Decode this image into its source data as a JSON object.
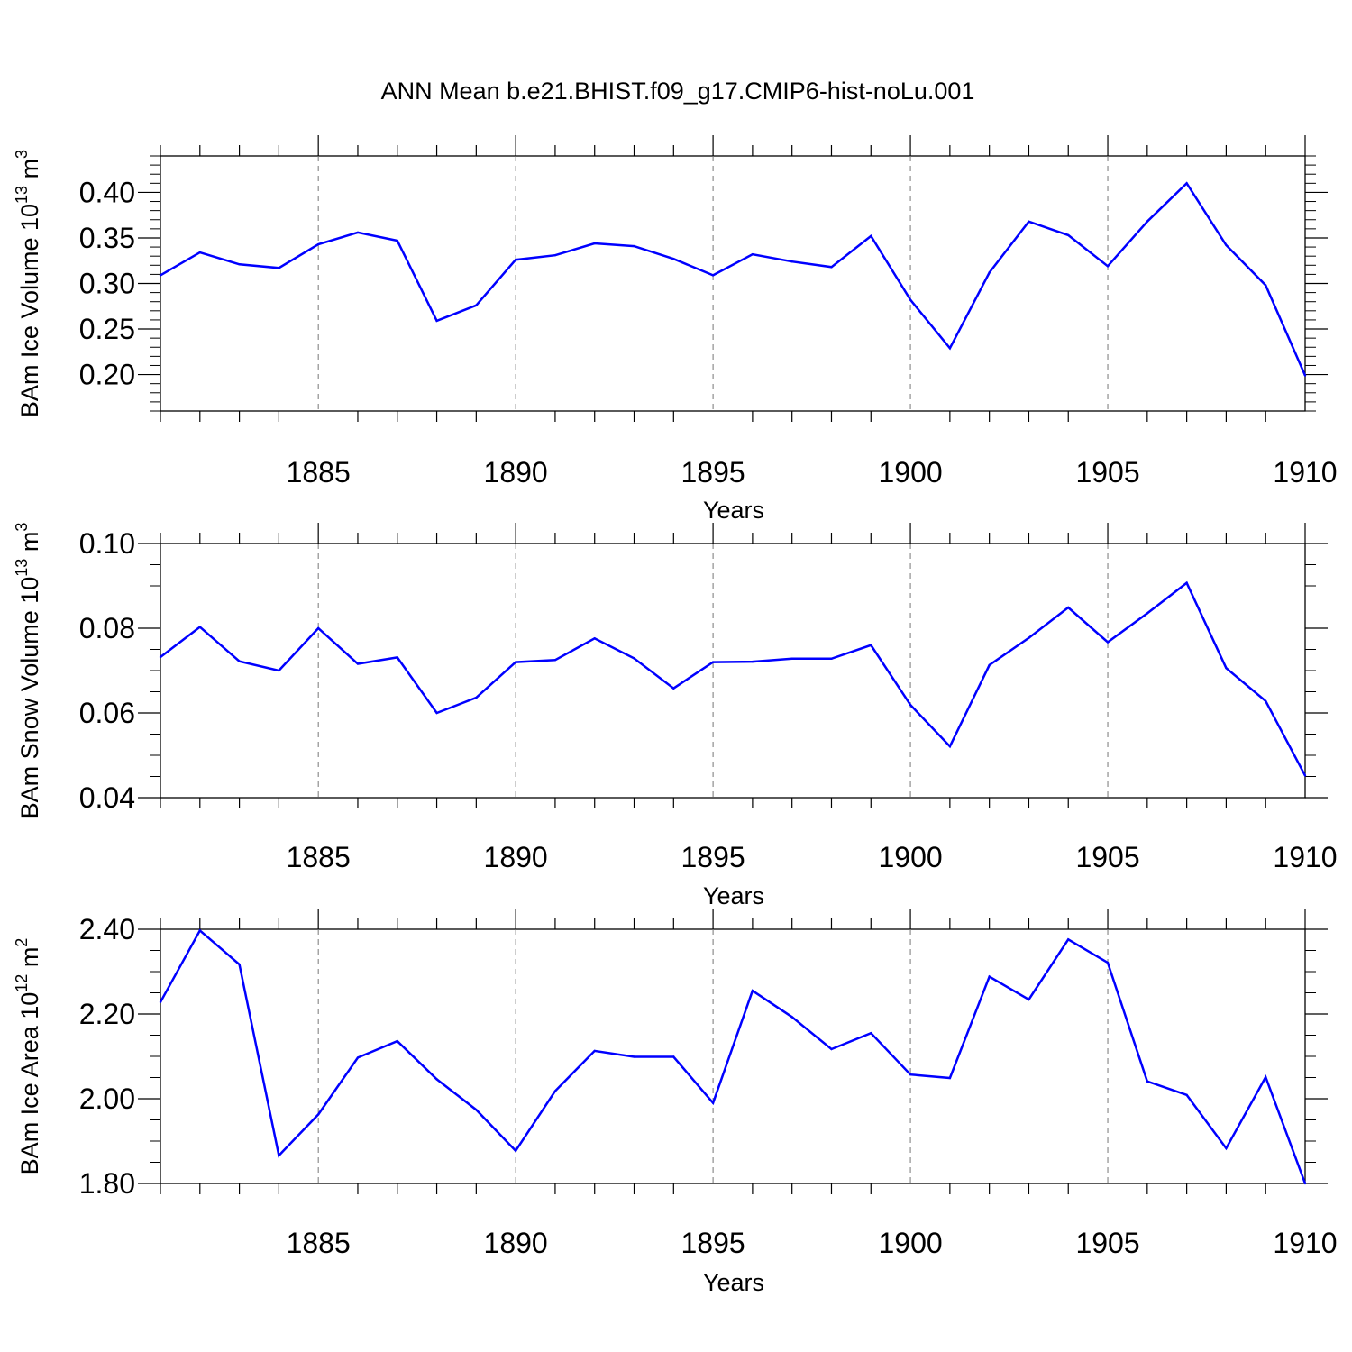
{
  "figure": {
    "title": "ANN Mean b.e21.BHIST.f09_g17.CMIP6-hist-noLu.001",
    "line_color": "#0000ff",
    "grid_color": "#777777"
  },
  "chart_data": [
    {
      "type": "line",
      "title": "ANN Mean b.e21.BHIST.f09_g17.CMIP6-hist-noLu.001",
      "xlabel": "Years",
      "ylabel": {
        "text": "BAm Ice Volume 10",
        "exp": "13",
        "unit": " m",
        "unit_exp": "3"
      },
      "xlim": [
        1881,
        1910
      ],
      "ylim": [
        0.16,
        0.44
      ],
      "xticks": [
        1885,
        1890,
        1895,
        1900,
        1905,
        1910
      ],
      "xticklabels": [
        "1885",
        "1890",
        "1895",
        "1900",
        "1905",
        "1910"
      ],
      "yticks": [
        0.2,
        0.25,
        0.3,
        0.35,
        0.4
      ],
      "yticklabels": [
        "0.20",
        "0.25",
        "0.30",
        "0.35",
        "0.40"
      ],
      "grid": "vertical dashed at labeled years",
      "x": [
        1881,
        1882,
        1883,
        1884,
        1885,
        1886,
        1887,
        1888,
        1889,
        1890,
        1891,
        1892,
        1893,
        1894,
        1895,
        1896,
        1897,
        1898,
        1899,
        1900,
        1901,
        1902,
        1903,
        1904,
        1905,
        1906,
        1907,
        1908,
        1909,
        1910
      ],
      "series": [
        {
          "values": [
            0.309,
            0.334,
            0.321,
            0.317,
            0.343,
            0.356,
            0.347,
            0.259,
            0.276,
            0.326,
            0.331,
            0.344,
            0.341,
            0.327,
            0.309,
            0.332,
            0.324,
            0.318,
            0.352,
            0.282,
            0.229,
            0.312,
            0.368,
            0.353,
            0.319,
            0.368,
            0.41,
            0.342,
            0.298,
            0.199
          ]
        }
      ]
    },
    {
      "type": "line",
      "xlabel": "Years",
      "ylabel": {
        "text": "BAm Snow Volume 10",
        "exp": "13",
        "unit": " m",
        "unit_exp": "3"
      },
      "xlim": [
        1881,
        1910
      ],
      "ylim": [
        0.04,
        0.1
      ],
      "xticks": [
        1885,
        1890,
        1895,
        1900,
        1905,
        1910
      ],
      "xticklabels": [
        "1885",
        "1890",
        "1895",
        "1900",
        "1905",
        "1910"
      ],
      "yticks": [
        0.04,
        0.06,
        0.08,
        0.1
      ],
      "yticklabels": [
        "0.04",
        "0.06",
        "0.08",
        "0.10"
      ],
      "grid": "vertical dashed at labeled years",
      "x": [
        1881,
        1882,
        1883,
        1884,
        1885,
        1886,
        1887,
        1888,
        1889,
        1890,
        1891,
        1892,
        1893,
        1894,
        1895,
        1896,
        1897,
        1898,
        1899,
        1900,
        1901,
        1902,
        1903,
        1904,
        1905,
        1906,
        1907,
        1908,
        1909,
        1910
      ],
      "series": [
        {
          "values": [
            0.0732,
            0.0803,
            0.0722,
            0.07,
            0.08,
            0.0716,
            0.0731,
            0.06,
            0.0636,
            0.072,
            0.0725,
            0.0776,
            0.0729,
            0.0658,
            0.072,
            0.0721,
            0.0728,
            0.0728,
            0.076,
            0.0619,
            0.0521,
            0.0713,
            0.0777,
            0.0849,
            0.0767,
            0.0835,
            0.0907,
            0.0706,
            0.0628,
            0.0452
          ]
        }
      ]
    },
    {
      "type": "line",
      "xlabel": "Years",
      "ylabel": {
        "text": "BAm Ice Area 10",
        "exp": "12",
        "unit": " m",
        "unit_exp": "2"
      },
      "xlim": [
        1881,
        1910
      ],
      "ylim": [
        1.8,
        2.4
      ],
      "xticks": [
        1885,
        1890,
        1895,
        1900,
        1905,
        1910
      ],
      "xticklabels": [
        "1885",
        "1890",
        "1895",
        "1900",
        "1905",
        "1910"
      ],
      "yticks": [
        1.8,
        2.0,
        2.2,
        2.4
      ],
      "yticklabels": [
        "1.80",
        "2.00",
        "2.20",
        "2.40"
      ],
      "grid": "vertical dashed at labeled years",
      "x": [
        1881,
        1882,
        1883,
        1884,
        1885,
        1886,
        1887,
        1888,
        1889,
        1890,
        1891,
        1892,
        1893,
        1894,
        1895,
        1896,
        1897,
        1898,
        1899,
        1900,
        1901,
        1902,
        1903,
        1904,
        1905,
        1906,
        1907,
        1908,
        1909,
        1910
      ],
      "series": [
        {
          "values": [
            2.228,
            2.397,
            2.317,
            1.866,
            1.963,
            2.097,
            2.136,
            2.046,
            1.974,
            1.877,
            2.018,
            2.113,
            2.099,
            2.099,
            1.99,
            2.255,
            2.193,
            2.117,
            2.155,
            2.057,
            2.049,
            2.288,
            2.234,
            2.376,
            2.321,
            2.041,
            2.009,
            1.883,
            2.051,
            1.8
          ]
        }
      ]
    }
  ]
}
